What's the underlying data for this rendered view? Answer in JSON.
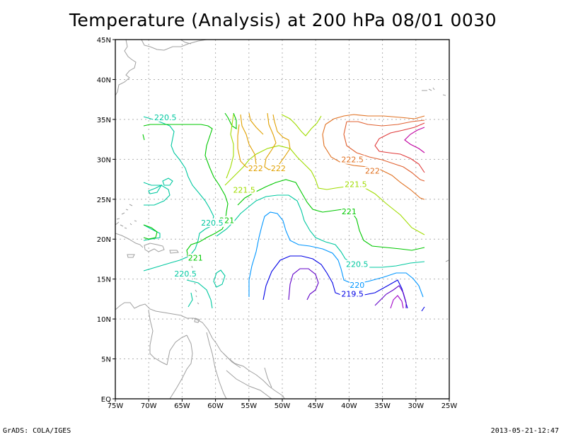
{
  "title": "Temperature (Analysis) at 200 hPa 08/01 0030",
  "footer": {
    "left": "GrADS: COLA/IGES",
    "right": "2013-05-21-12:47"
  },
  "map": {
    "lon_range": [
      -75,
      -25
    ],
    "lat_range": [
      0,
      45
    ],
    "x_ticks": [
      {
        "lon": -75,
        "label": "75W"
      },
      {
        "lon": -70,
        "label": "70W"
      },
      {
        "lon": -65,
        "label": "65W"
      },
      {
        "lon": -60,
        "label": "60W"
      },
      {
        "lon": -55,
        "label": "55W"
      },
      {
        "lon": -50,
        "label": "50W"
      },
      {
        "lon": -45,
        "label": "45W"
      },
      {
        "lon": -40,
        "label": "40W"
      },
      {
        "lon": -35,
        "label": "35W"
      },
      {
        "lon": -30,
        "label": "30W"
      },
      {
        "lon": -25,
        "label": "25W"
      }
    ],
    "y_ticks": [
      {
        "lat": 0,
        "label": "EQ"
      },
      {
        "lat": 5,
        "label": "5N"
      },
      {
        "lat": 10,
        "label": "10N"
      },
      {
        "lat": 15,
        "label": "15N"
      },
      {
        "lat": 20,
        "label": "20N"
      },
      {
        "lat": 25,
        "label": "25N"
      },
      {
        "lat": 30,
        "label": "30N"
      },
      {
        "lat": 35,
        "label": "35N"
      },
      {
        "lat": 40,
        "label": "40N"
      },
      {
        "lat": 45,
        "label": "45N"
      }
    ],
    "grid": "dotted",
    "land_color": "#a0a0a0"
  },
  "contour_labels": [
    {
      "text": "220.5",
      "lon": -67.5,
      "lat": 35.0,
      "color": "#00c8a0"
    },
    {
      "text": "222.5",
      "lon": -39.5,
      "lat": 29.7,
      "color": "#e07020"
    },
    {
      "text": "222",
      "lon": -54.0,
      "lat": 28.6,
      "color": "#e0a000"
    },
    {
      "text": "222",
      "lon": -50.6,
      "lat": 28.6,
      "color": "#e0a000"
    },
    {
      "text": "222",
      "lon": -36.5,
      "lat": 28.3,
      "color": "#e07020"
    },
    {
      "text": "221.5",
      "lon": -39.0,
      "lat": 26.6,
      "color": "#a0dc00"
    },
    {
      "text": "221.5",
      "lon": -55.7,
      "lat": 25.9,
      "color": "#a0dc00"
    },
    {
      "text": "221",
      "lon": -40.0,
      "lat": 23.2,
      "color": "#00c800"
    },
    {
      "text": "221",
      "lon": -58.3,
      "lat": 22.1,
      "color": "#00c800"
    },
    {
      "text": "220.5",
      "lon": -60.5,
      "lat": 21.8,
      "color": "#00c8a0"
    },
    {
      "text": "221",
      "lon": -63.0,
      "lat": 17.4,
      "color": "#00c800"
    },
    {
      "text": "220.5",
      "lon": -64.5,
      "lat": 15.4,
      "color": "#00c8a0"
    },
    {
      "text": "220.5",
      "lon": -38.8,
      "lat": 16.6,
      "color": "#00c8a0"
    },
    {
      "text": "220",
      "lon": -38.8,
      "lat": 14.0,
      "color": "#0096ff"
    },
    {
      "text": "219.5",
      "lon": -39.5,
      "lat": 12.9,
      "color": "#0000e6"
    }
  ]
}
